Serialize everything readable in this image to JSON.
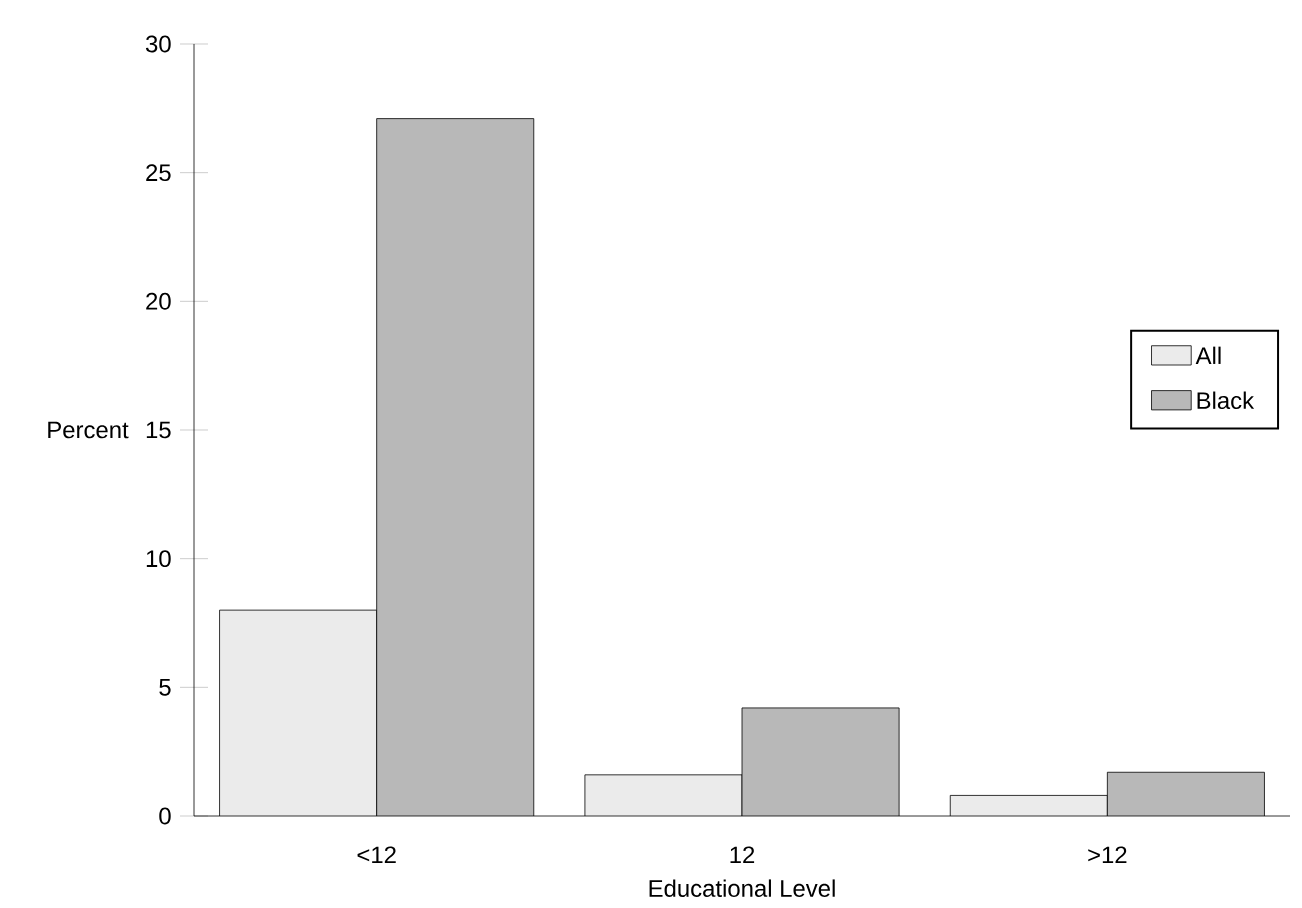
{
  "chart_data": {
    "type": "bar",
    "xlabel": "Educational Level",
    "ylabel": "Percent",
    "categories": [
      "<12",
      "12",
      ">12"
    ],
    "series": [
      {
        "name": "All",
        "color": "#ebebeb",
        "values": [
          8.0,
          1.6,
          0.8
        ]
      },
      {
        "name": "Black",
        "color": "#b8b8b8",
        "values": [
          27.1,
          4.2,
          1.7
        ]
      }
    ],
    "ylim": [
      0,
      30
    ],
    "yticks": [
      0,
      5,
      10,
      15,
      20,
      25,
      30
    ],
    "legend": "right"
  }
}
